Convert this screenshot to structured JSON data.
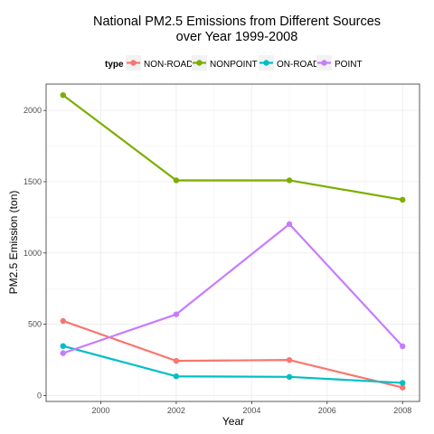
{
  "chart_data": {
    "type": "line",
    "title_line1": "National PM2.5 Emissions from Different Sources",
    "title_line2": "over Year 1999-2008",
    "xlabel": "Year",
    "ylabel": "PM2.5 Emission (ton)",
    "legend_title": "type",
    "legend_position": "top",
    "grid": true,
    "x": [
      1999,
      2002,
      2005,
      2008
    ],
    "xlim": [
      1998.55,
      2008.45
    ],
    "ylim": [
      -42,
      2185
    ],
    "x_ticks": [
      2000,
      2002,
      2004,
      2006,
      2008
    ],
    "y_ticks": [
      0,
      500,
      1000,
      1500,
      2000
    ],
    "series": [
      {
        "name": "NON-ROAD",
        "color": "#F8766D",
        "values": [
          522.9,
          242.7,
          248.9,
          55.8
        ]
      },
      {
        "name": "NONPOINT",
        "color": "#7CAE00",
        "values": [
          2107.6,
          1509.5,
          1509.5,
          1373.2
        ]
      },
      {
        "name": "ON-ROAD",
        "color": "#00BFC4",
        "values": [
          346.8,
          134.3,
          130.4,
          88.3
        ]
      },
      {
        "name": "POINT",
        "color": "#C77CFF",
        "values": [
          296.8,
          569.3,
          1202.5,
          344.98
        ]
      }
    ]
  }
}
